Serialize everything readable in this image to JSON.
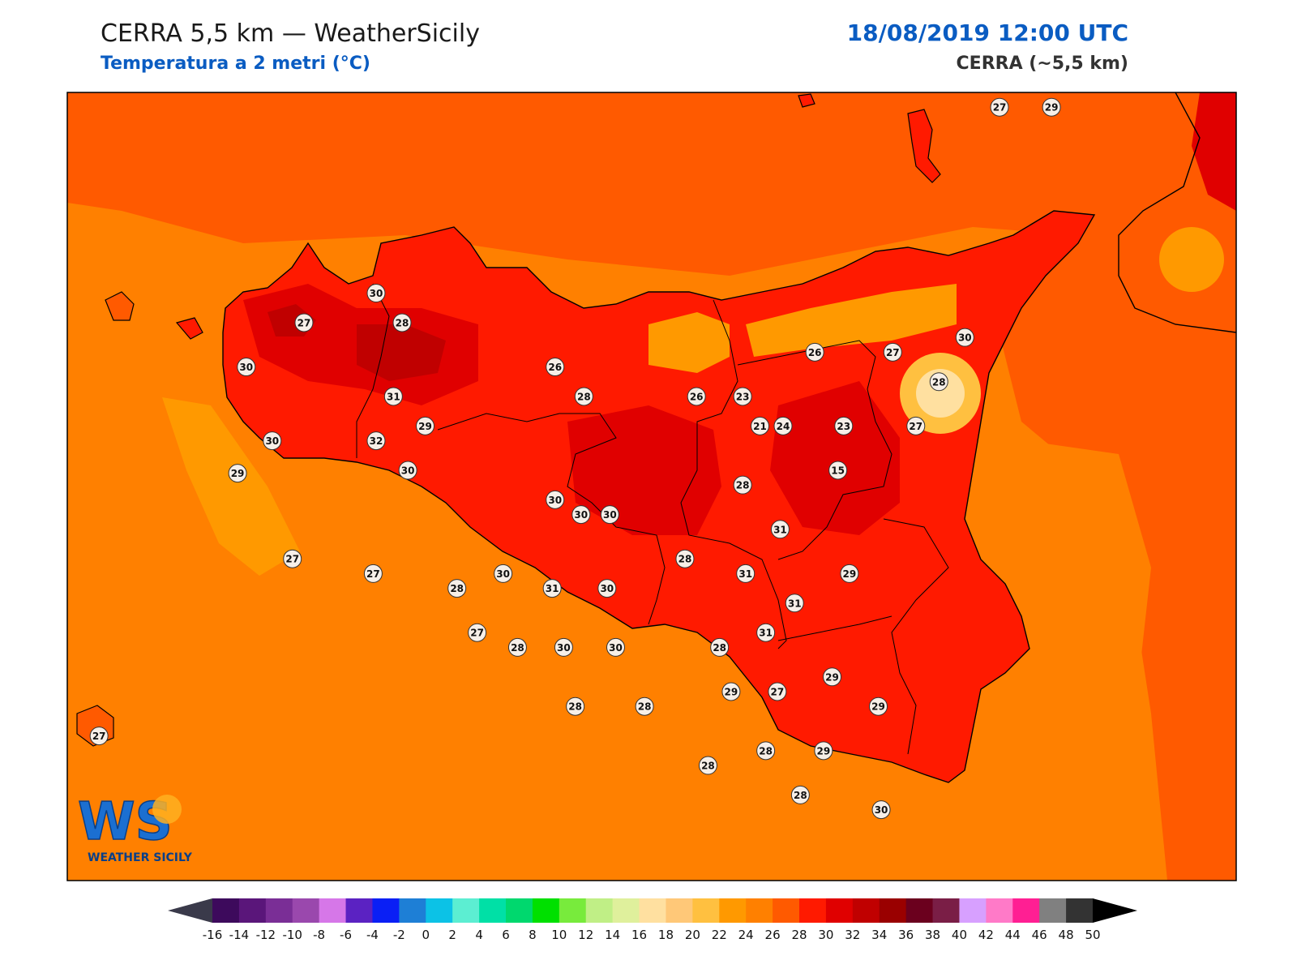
{
  "header": {
    "title": "CERRA 5,5 km — WeatherSicily",
    "subtitle": "Temperatura a 2 metri (°C)",
    "datetime": "18/08/2019 12:00 UTC",
    "model": "CERRA (~5,5 km)"
  },
  "logo": {
    "big": "WS",
    "small": "WEATHER SICILY"
  },
  "stations": [
    {
      "v": "27",
      "lon": 15.13,
      "lat": 38.92
    },
    {
      "v": "29",
      "lon": 15.31,
      "lat": 38.92
    },
    {
      "v": "30",
      "lon": 12.97,
      "lat": 38.29
    },
    {
      "v": "27",
      "lon": 12.72,
      "lat": 38.19
    },
    {
      "v": "28",
      "lon": 13.06,
      "lat": 38.19
    },
    {
      "v": "30",
      "lon": 12.52,
      "lat": 38.04
    },
    {
      "v": "26",
      "lon": 13.59,
      "lat": 38.04
    },
    {
      "v": "31",
      "lon": 13.03,
      "lat": 37.94
    },
    {
      "v": "28",
      "lon": 13.69,
      "lat": 37.94
    },
    {
      "v": "29",
      "lon": 13.14,
      "lat": 37.84
    },
    {
      "v": "30",
      "lon": 12.61,
      "lat": 37.79
    },
    {
      "v": "32",
      "lon": 12.97,
      "lat": 37.79
    },
    {
      "v": "30",
      "lon": 13.08,
      "lat": 37.69
    },
    {
      "v": "29",
      "lon": 12.49,
      "lat": 37.68
    },
    {
      "v": "30",
      "lon": 13.59,
      "lat": 37.59
    },
    {
      "v": "30",
      "lon": 13.68,
      "lat": 37.54
    },
    {
      "v": "30",
      "lon": 13.78,
      "lat": 37.54
    },
    {
      "v": "27",
      "lon": 12.68,
      "lat": 37.39
    },
    {
      "v": "27",
      "lon": 12.96,
      "lat": 37.34
    },
    {
      "v": "30",
      "lon": 13.41,
      "lat": 37.34
    },
    {
      "v": "28",
      "lon": 13.25,
      "lat": 37.29
    },
    {
      "v": "31",
      "lon": 13.58,
      "lat": 37.29
    },
    {
      "v": "30",
      "lon": 13.77,
      "lat": 37.29
    },
    {
      "v": "27",
      "lon": 13.32,
      "lat": 37.14
    },
    {
      "v": "28",
      "lon": 13.46,
      "lat": 37.09
    },
    {
      "v": "30",
      "lon": 13.62,
      "lat": 37.09
    },
    {
      "v": "30",
      "lon": 13.8,
      "lat": 37.09
    },
    {
      "v": "28",
      "lon": 13.66,
      "lat": 36.89
    },
    {
      "v": "28",
      "lon": 13.9,
      "lat": 36.89
    },
    {
      "v": "26",
      "lon": 14.49,
      "lat": 38.09
    },
    {
      "v": "27",
      "lon": 14.76,
      "lat": 38.09
    },
    {
      "v": "30",
      "lon": 15.01,
      "lat": 38.14
    },
    {
      "v": "28",
      "lon": 14.92,
      "lat": 37.99
    },
    {
      "v": "26",
      "lon": 14.08,
      "lat": 37.94
    },
    {
      "v": "23",
      "lon": 14.24,
      "lat": 37.94
    },
    {
      "v": "23",
      "lon": 14.59,
      "lat": 37.84
    },
    {
      "v": "21",
      "lon": 14.3,
      "lat": 37.84
    },
    {
      "v": "24",
      "lon": 14.38,
      "lat": 37.84
    },
    {
      "v": "27",
      "lon": 14.84,
      "lat": 37.84
    },
    {
      "v": "15",
      "lon": 14.57,
      "lat": 37.69
    },
    {
      "v": "28",
      "lon": 14.24,
      "lat": 37.64
    },
    {
      "v": "31",
      "lon": 14.37,
      "lat": 37.49
    },
    {
      "v": "28",
      "lon": 14.04,
      "lat": 37.39
    },
    {
      "v": "31",
      "lon": 14.25,
      "lat": 37.34
    },
    {
      "v": "29",
      "lon": 14.61,
      "lat": 37.34
    },
    {
      "v": "31",
      "lon": 14.42,
      "lat": 37.24
    },
    {
      "v": "31",
      "lon": 14.32,
      "lat": 37.14
    },
    {
      "v": "28",
      "lon": 14.16,
      "lat": 37.09
    },
    {
      "v": "29",
      "lon": 14.55,
      "lat": 36.99
    },
    {
      "v": "29",
      "lon": 14.2,
      "lat": 36.94
    },
    {
      "v": "27",
      "lon": 14.36,
      "lat": 36.94
    },
    {
      "v": "29",
      "lon": 14.71,
      "lat": 36.89
    },
    {
      "v": "28",
      "lon": 14.12,
      "lat": 36.69
    },
    {
      "v": "28",
      "lon": 14.32,
      "lat": 36.74
    },
    {
      "v": "29",
      "lon": 14.52,
      "lat": 36.74
    },
    {
      "v": "28",
      "lon": 14.44,
      "lat": 36.59
    },
    {
      "v": "30",
      "lon": 14.72,
      "lat": 36.54
    },
    {
      "v": "27",
      "lon": 12.01,
      "lat": 36.79
    }
  ],
  "colorbar": {
    "ticks": [
      "-16",
      "-14",
      "-12",
      "-10",
      "-8",
      "-6",
      "-4",
      "-2",
      "0",
      "2",
      "4",
      "6",
      "8",
      "10",
      "12",
      "14",
      "16",
      "18",
      "20",
      "22",
      "24",
      "26",
      "28",
      "30",
      "32",
      "34",
      "36",
      "38",
      "40",
      "42",
      "44",
      "46",
      "48",
      "50"
    ],
    "colors": [
      "#3d0a5c",
      "#5a167a",
      "#7a2e96",
      "#9a48ad",
      "#d677e8",
      "#5b22c2",
      "#0a1ff5",
      "#1e7fd6",
      "#0cc2e6",
      "#5ceed2",
      "#00e0a6",
      "#00d86e",
      "#00e000",
      "#78eb3c",
      "#c0ef86",
      "#dff09c",
      "#ffe0a0",
      "#ffc878",
      "#ffc040",
      "#ff9900",
      "#ff8000",
      "#ff5a00",
      "#ff1a00",
      "#e00000",
      "#c00000",
      "#9a0000",
      "#6b001e",
      "#7a1e46",
      "#d7a0ff",
      "#ff7ac8",
      "#ff1f93",
      "#808080",
      "#333333"
    ],
    "under_color": "#3a3a4a",
    "over_color": "#000000"
  },
  "colors": {
    "sea": "#ff8000",
    "island": "#ff1a00",
    "hot": "#e00000",
    "veryhot": "#c00000",
    "warm": "#ff5a00",
    "cool": "#ffc040",
    "frame": "#000000"
  }
}
